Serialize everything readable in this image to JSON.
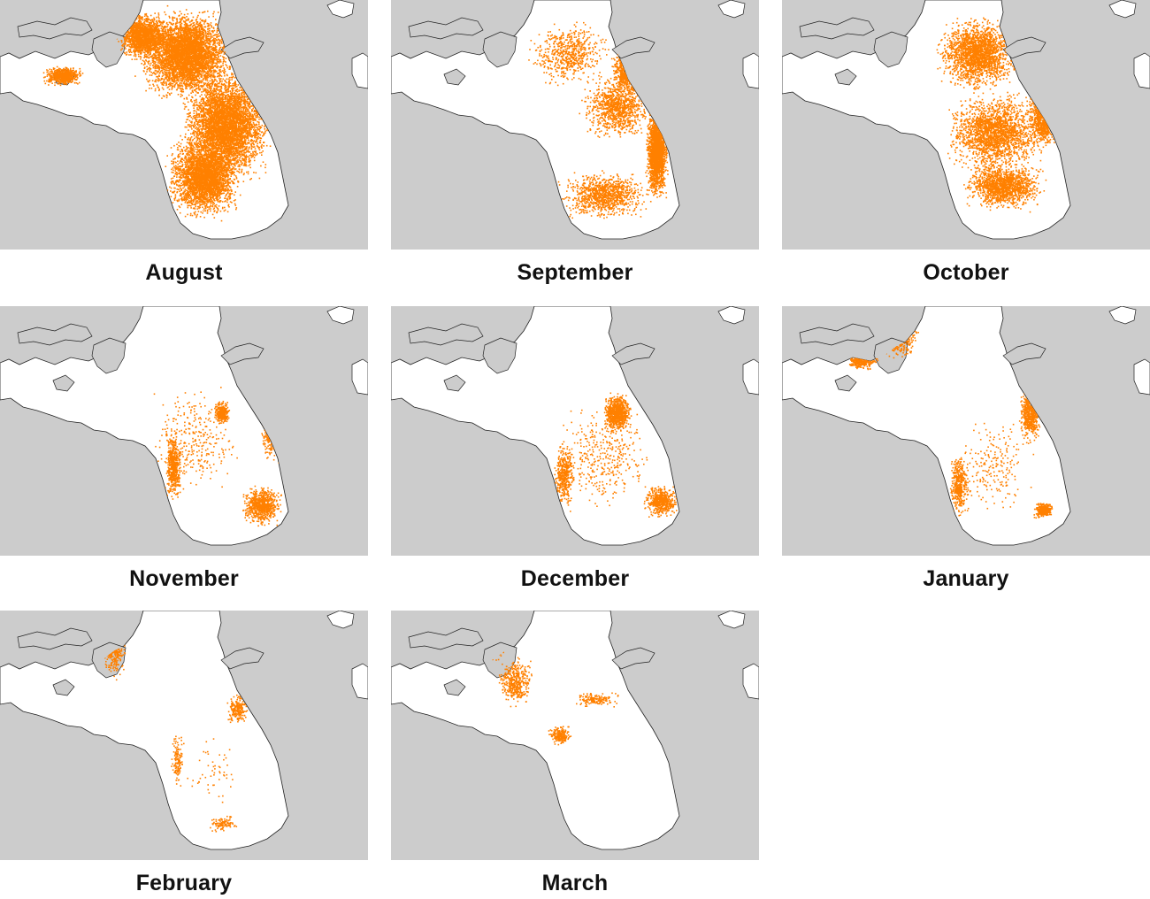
{
  "colors": {
    "land": "#cccccc",
    "water": "#ffffff",
    "coast": "#222222",
    "points": "#ff8000"
  },
  "panels": [
    {
      "month": "August",
      "density": 6,
      "centroid": "south-central basin, dense throughout"
    },
    {
      "month": "September",
      "density": 4,
      "centroid": "eastern shore"
    },
    {
      "month": "October",
      "density": 4,
      "centroid": "central basin"
    },
    {
      "month": "November",
      "density": 2,
      "centroid": "eastern and western shores"
    },
    {
      "month": "December",
      "density": 2,
      "centroid": "eastern shore"
    },
    {
      "month": "January",
      "density": 2,
      "centroid": "northern channels and eastern shore"
    },
    {
      "month": "February",
      "density": 1,
      "centroid": "northern channels"
    },
    {
      "month": "March",
      "density": 1,
      "centroid": "northern channels"
    }
  ]
}
